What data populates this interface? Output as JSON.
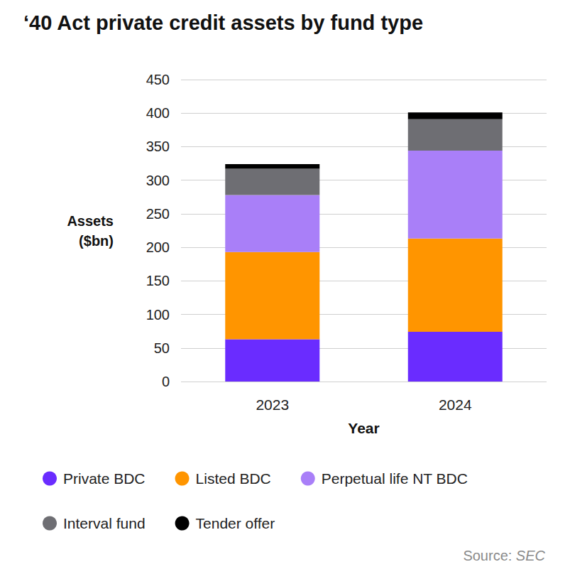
{
  "chart_data": {
    "type": "bar",
    "title": "‘40 Act private credit assets by fund type",
    "x_label": "Year",
    "y_label": "Assets\n($bn)",
    "source": "Source: SEC",
    "categories": [
      "2023",
      "2024"
    ],
    "series": [
      {
        "name": "Private BDC",
        "color": "#6a2cff",
        "values": [
          63,
          74
        ]
      },
      {
        "name": "Listed BDC",
        "color": "#ff9500",
        "values": [
          130,
          139
        ]
      },
      {
        "name": "Perpetual life NT BDC",
        "color": "#a97ff8",
        "values": [
          85,
          131
        ]
      },
      {
        "name": "Interval fund",
        "color": "#6e6e73",
        "values": [
          39,
          47
        ]
      },
      {
        "name": "Tender offer",
        "color": "#000000",
        "values": [
          7,
          10
        ]
      }
    ],
    "ylim": [
      0,
      450
    ],
    "yticks": [
      0,
      50,
      100,
      150,
      200,
      250,
      300,
      350,
      400,
      450
    ],
    "stacked": true,
    "grid": true,
    "legend": "bottom"
  }
}
